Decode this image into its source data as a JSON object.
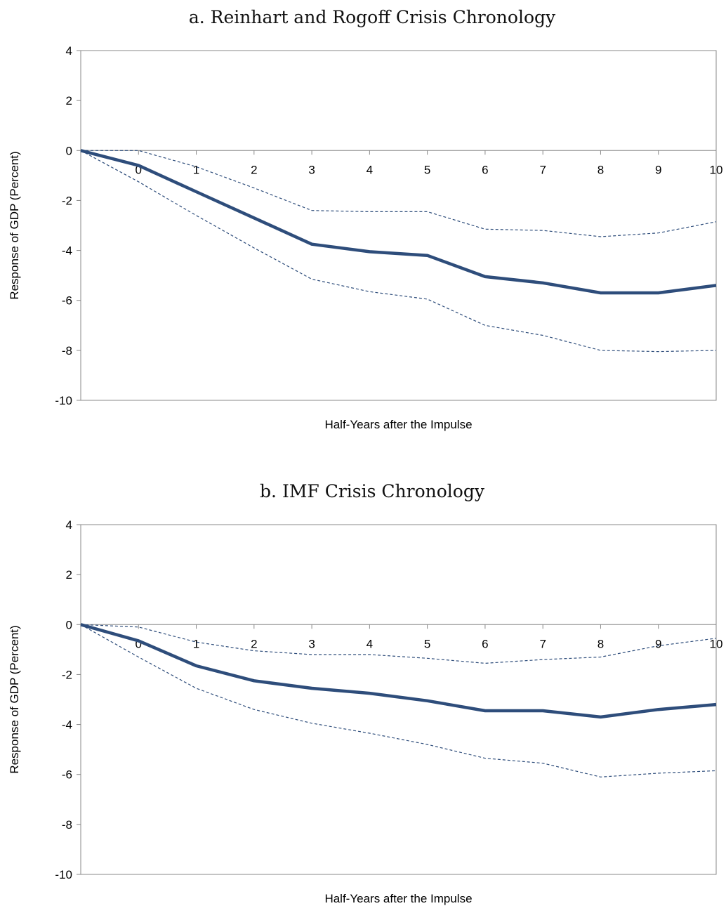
{
  "chart_data": [
    {
      "type": "line",
      "title": "a.  Reinhart and Rogoff Crisis Chronology",
      "xlabel": "Half-Years after the Impulse",
      "ylabel": "Response of GDP (Percent)",
      "ylim": [
        -10,
        4
      ],
      "yticks": [
        4,
        2,
        0,
        -2,
        -4,
        -6,
        -8,
        -10
      ],
      "categories": [
        "0",
        "1",
        "2",
        "3",
        "4",
        "5",
        "6",
        "7",
        "8",
        "9",
        "10"
      ],
      "grid": false,
      "series": [
        {
          "style": "solid",
          "color": "#2e4d7b",
          "values": [
            -0.6,
            -1.65,
            -2.7,
            -3.75,
            -4.05,
            -4.2,
            -5.05,
            -5.3,
            -5.7,
            -5.7,
            -5.4
          ]
        },
        {
          "style": "dashed",
          "color": "#2e4d7b",
          "values": [
            0.0,
            -0.65,
            -1.5,
            -2.4,
            -2.45,
            -2.45,
            -3.15,
            -3.2,
            -3.45,
            -3.3,
            -2.85
          ]
        },
        {
          "style": "dashed",
          "color": "#2e4d7b",
          "values": [
            -1.25,
            -2.6,
            -3.9,
            -5.15,
            -5.65,
            -5.95,
            -7.0,
            -7.4,
            -8.0,
            -8.05,
            -8.0
          ]
        }
      ]
    },
    {
      "type": "line",
      "title": "b.  IMF Crisis Chronology",
      "xlabel": "Half-Years after the Impulse",
      "ylabel": "Response of GDP (Percent)",
      "ylim": [
        -10,
        4
      ],
      "yticks": [
        4,
        2,
        0,
        -2,
        -4,
        -6,
        -8,
        -10
      ],
      "categories": [
        "0",
        "1",
        "2",
        "3",
        "4",
        "5",
        "6",
        "7",
        "8",
        "9",
        "10"
      ],
      "grid": false,
      "series": [
        {
          "style": "solid",
          "color": "#2e4d7b",
          "values": [
            -0.65,
            -1.65,
            -2.25,
            -2.55,
            -2.75,
            -3.05,
            -3.45,
            -3.45,
            -3.7,
            -3.4,
            -3.2
          ]
        },
        {
          "style": "dashed",
          "color": "#2e4d7b",
          "values": [
            -0.1,
            -0.7,
            -1.05,
            -1.2,
            -1.2,
            -1.35,
            -1.55,
            -1.4,
            -1.3,
            -0.85,
            -0.55
          ]
        },
        {
          "style": "dashed",
          "color": "#2e4d7b",
          "values": [
            -1.3,
            -2.55,
            -3.4,
            -3.95,
            -4.35,
            -4.8,
            -5.35,
            -5.55,
            -6.1,
            -5.95,
            -5.85
          ]
        }
      ]
    }
  ]
}
